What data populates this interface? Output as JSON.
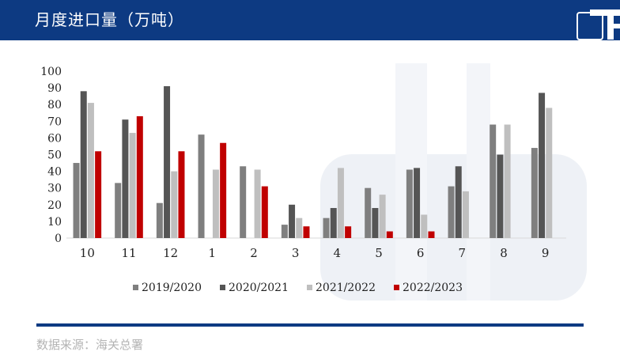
{
  "header": {
    "title": "月度进口量（万吨）"
  },
  "footer": {
    "source": "数据来源：海关总署"
  },
  "colors": {
    "header_bg": "#0d3a82",
    "series": [
      "#7f7f7f",
      "#555555",
      "#bfbfbf",
      "#c00000"
    ]
  },
  "chart_data": {
    "type": "bar",
    "title": "",
    "xlabel": "",
    "ylabel": "",
    "categories": [
      "10",
      "11",
      "12",
      "1",
      "2",
      "3",
      "4",
      "5",
      "6",
      "7",
      "8",
      "9"
    ],
    "ylim": [
      0,
      100
    ],
    "yticks": [
      0,
      10,
      20,
      30,
      40,
      50,
      60,
      70,
      80,
      90,
      100
    ],
    "grid": false,
    "legend_position": "bottom",
    "series": [
      {
        "name": "2019/2020",
        "values": [
          45,
          33,
          21,
          62,
          43,
          8,
          12,
          30,
          41,
          31,
          68,
          54
        ]
      },
      {
        "name": "2020/2021",
        "values": [
          88,
          71,
          91,
          null,
          null,
          20,
          18,
          18,
          42,
          43,
          50,
          87
        ]
      },
      {
        "name": "2021/2022",
        "values": [
          81,
          63,
          40,
          41,
          41,
          12,
          42,
          26,
          14,
          28,
          68,
          78
        ]
      },
      {
        "name": "2022/2023",
        "values": [
          52,
          73,
          52,
          57,
          31,
          7,
          7,
          4,
          4,
          null,
          null,
          null
        ]
      }
    ]
  }
}
